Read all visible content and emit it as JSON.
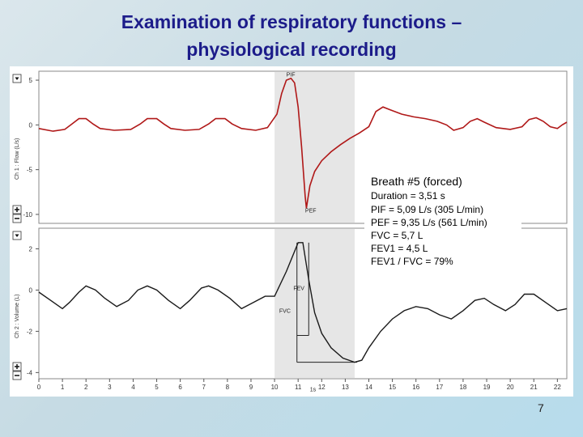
{
  "slide": {
    "title_line1": "Examination of respiratory functions –",
    "title_line2": "physiological recording",
    "page_number": "7"
  },
  "colors": {
    "flow_trace": "#b01818",
    "volume_trace": "#1a1a1a",
    "highlight_band": "#e6e6e6",
    "title": "#1c1c8a"
  },
  "chart_data": [
    {
      "type": "line",
      "ylabel": "Ch 1 : Flow (L/s)",
      "ylim": [
        -11,
        6
      ],
      "xlim": [
        0,
        22.4
      ],
      "yticks": [
        5,
        0,
        -5,
        -10
      ],
      "highlight": [
        10,
        13.4
      ],
      "annotations": [
        {
          "text": "PIF",
          "x": 10.5,
          "y": 5.4
        },
        {
          "text": "PEF",
          "x": 11.3,
          "y": -9.8
        }
      ],
      "series": [
        {
          "values": [
            [
              0,
              -0.4
            ],
            [
              0.6,
              -0.7
            ],
            [
              1.1,
              -0.5
            ],
            [
              1.4,
              0.1
            ],
            [
              1.7,
              0.7
            ],
            [
              2.0,
              0.7
            ],
            [
              2.3,
              0.1
            ],
            [
              2.6,
              -0.4
            ],
            [
              3.2,
              -0.6
            ],
            [
              3.9,
              -0.5
            ],
            [
              4.3,
              0.1
            ],
            [
              4.6,
              0.7
            ],
            [
              5.0,
              0.7
            ],
            [
              5.3,
              0.1
            ],
            [
              5.6,
              -0.4
            ],
            [
              6.2,
              -0.6
            ],
            [
              6.8,
              -0.5
            ],
            [
              7.2,
              0.1
            ],
            [
              7.5,
              0.7
            ],
            [
              7.9,
              0.7
            ],
            [
              8.2,
              0.1
            ],
            [
              8.6,
              -0.4
            ],
            [
              9.2,
              -0.6
            ],
            [
              9.7,
              -0.3
            ],
            [
              10.1,
              1.2
            ],
            [
              10.3,
              3.5
            ],
            [
              10.5,
              5.0
            ],
            [
              10.7,
              5.2
            ],
            [
              10.85,
              4.7
            ],
            [
              11.0,
              2.0
            ],
            [
              11.15,
              -2.5
            ],
            [
              11.3,
              -8.0
            ],
            [
              11.35,
              -9.3
            ],
            [
              11.5,
              -6.8
            ],
            [
              11.7,
              -5.2
            ],
            [
              12.0,
              -4.0
            ],
            [
              12.4,
              -3.0
            ],
            [
              12.8,
              -2.2
            ],
            [
              13.2,
              -1.5
            ],
            [
              13.6,
              -0.9
            ],
            [
              14.0,
              -0.2
            ],
            [
              14.3,
              1.5
            ],
            [
              14.6,
              2.0
            ],
            [
              14.9,
              1.7
            ],
            [
              15.4,
              1.2
            ],
            [
              15.9,
              0.9
            ],
            [
              16.4,
              0.7
            ],
            [
              16.9,
              0.4
            ],
            [
              17.3,
              0.0
            ],
            [
              17.6,
              -0.6
            ],
            [
              18.0,
              -0.3
            ],
            [
              18.3,
              0.4
            ],
            [
              18.6,
              0.7
            ],
            [
              18.9,
              0.3
            ],
            [
              19.4,
              -0.3
            ],
            [
              20.0,
              -0.5
            ],
            [
              20.5,
              -0.2
            ],
            [
              20.8,
              0.6
            ],
            [
              21.1,
              0.8
            ],
            [
              21.4,
              0.4
            ],
            [
              21.7,
              -0.2
            ],
            [
              22.0,
              -0.4
            ],
            [
              22.2,
              0.0
            ],
            [
              22.4,
              0.3
            ]
          ]
        }
      ]
    },
    {
      "type": "line",
      "ylabel": "Ch 2 : Volume (L)",
      "ylim": [
        -4.3,
        3.0
      ],
      "xlim": [
        0,
        22.4
      ],
      "yticks": [
        2,
        0,
        -2,
        -4
      ],
      "xticks": [
        "0",
        "1",
        "2",
        "3",
        "4",
        "5",
        "6",
        "7",
        "8",
        "9",
        "10",
        "11",
        "12",
        "13",
        "14",
        "15",
        "16",
        "17",
        "18",
        "19",
        "20",
        "21",
        "22"
      ],
      "highlight": [
        10,
        13.4
      ],
      "annotations": [
        {
          "text": "FEV",
          "x": 10.8,
          "y": 0.0
        },
        {
          "text": "FVC",
          "x": 10.2,
          "y": -1.1
        },
        {
          "text": "1s",
          "x": 11.5,
          "y": -4.9
        }
      ],
      "series": [
        {
          "values": [
            [
              0,
              -0.1
            ],
            [
              0.5,
              -0.5
            ],
            [
              1.0,
              -0.9
            ],
            [
              1.3,
              -0.6
            ],
            [
              1.7,
              -0.1
            ],
            [
              2.0,
              0.2
            ],
            [
              2.4,
              0.0
            ],
            [
              2.8,
              -0.4
            ],
            [
              3.3,
              -0.8
            ],
            [
              3.8,
              -0.5
            ],
            [
              4.2,
              0.0
            ],
            [
              4.6,
              0.2
            ],
            [
              5.0,
              0.0
            ],
            [
              5.5,
              -0.5
            ],
            [
              6.0,
              -0.9
            ],
            [
              6.4,
              -0.5
            ],
            [
              6.9,
              0.1
            ],
            [
              7.2,
              0.2
            ],
            [
              7.6,
              0.0
            ],
            [
              8.1,
              -0.4
            ],
            [
              8.6,
              -0.9
            ],
            [
              9.1,
              -0.6
            ],
            [
              9.6,
              -0.3
            ],
            [
              10.0,
              -0.3
            ],
            [
              10.5,
              0.9
            ],
            [
              11.0,
              2.3
            ],
            [
              11.2,
              2.3
            ],
            [
              11.45,
              0.5
            ],
            [
              11.7,
              -1.1
            ],
            [
              12.0,
              -2.1
            ],
            [
              12.4,
              -2.8
            ],
            [
              12.9,
              -3.3
            ],
            [
              13.4,
              -3.5
            ],
            [
              13.7,
              -3.4
            ],
            [
              14.0,
              -2.8
            ],
            [
              14.5,
              -2.0
            ],
            [
              15.0,
              -1.4
            ],
            [
              15.5,
              -1.0
            ],
            [
              16.0,
              -0.8
            ],
            [
              16.5,
              -0.9
            ],
            [
              17.0,
              -1.2
            ],
            [
              17.5,
              -1.4
            ],
            [
              18.0,
              -1.0
            ],
            [
              18.5,
              -0.5
            ],
            [
              18.9,
              -0.4
            ],
            [
              19.3,
              -0.7
            ],
            [
              19.8,
              -1.0
            ],
            [
              20.2,
              -0.7
            ],
            [
              20.6,
              -0.2
            ],
            [
              21.0,
              -0.2
            ],
            [
              21.5,
              -0.6
            ],
            [
              22.0,
              -1.0
            ],
            [
              22.4,
              -0.9
            ]
          ]
        }
      ]
    }
  ],
  "breath_info": {
    "heading": "Breath #5 (forced)",
    "lines": [
      "Duration = 3,51 s",
      "PIF = 5,09 L/s (305 L/min)",
      "PEF = 9,35 L/s (561 L/min)",
      "FVC = 5,7 L",
      "FEV1 = 4,5 L",
      "FEV1 / FVC = 79%"
    ]
  }
}
